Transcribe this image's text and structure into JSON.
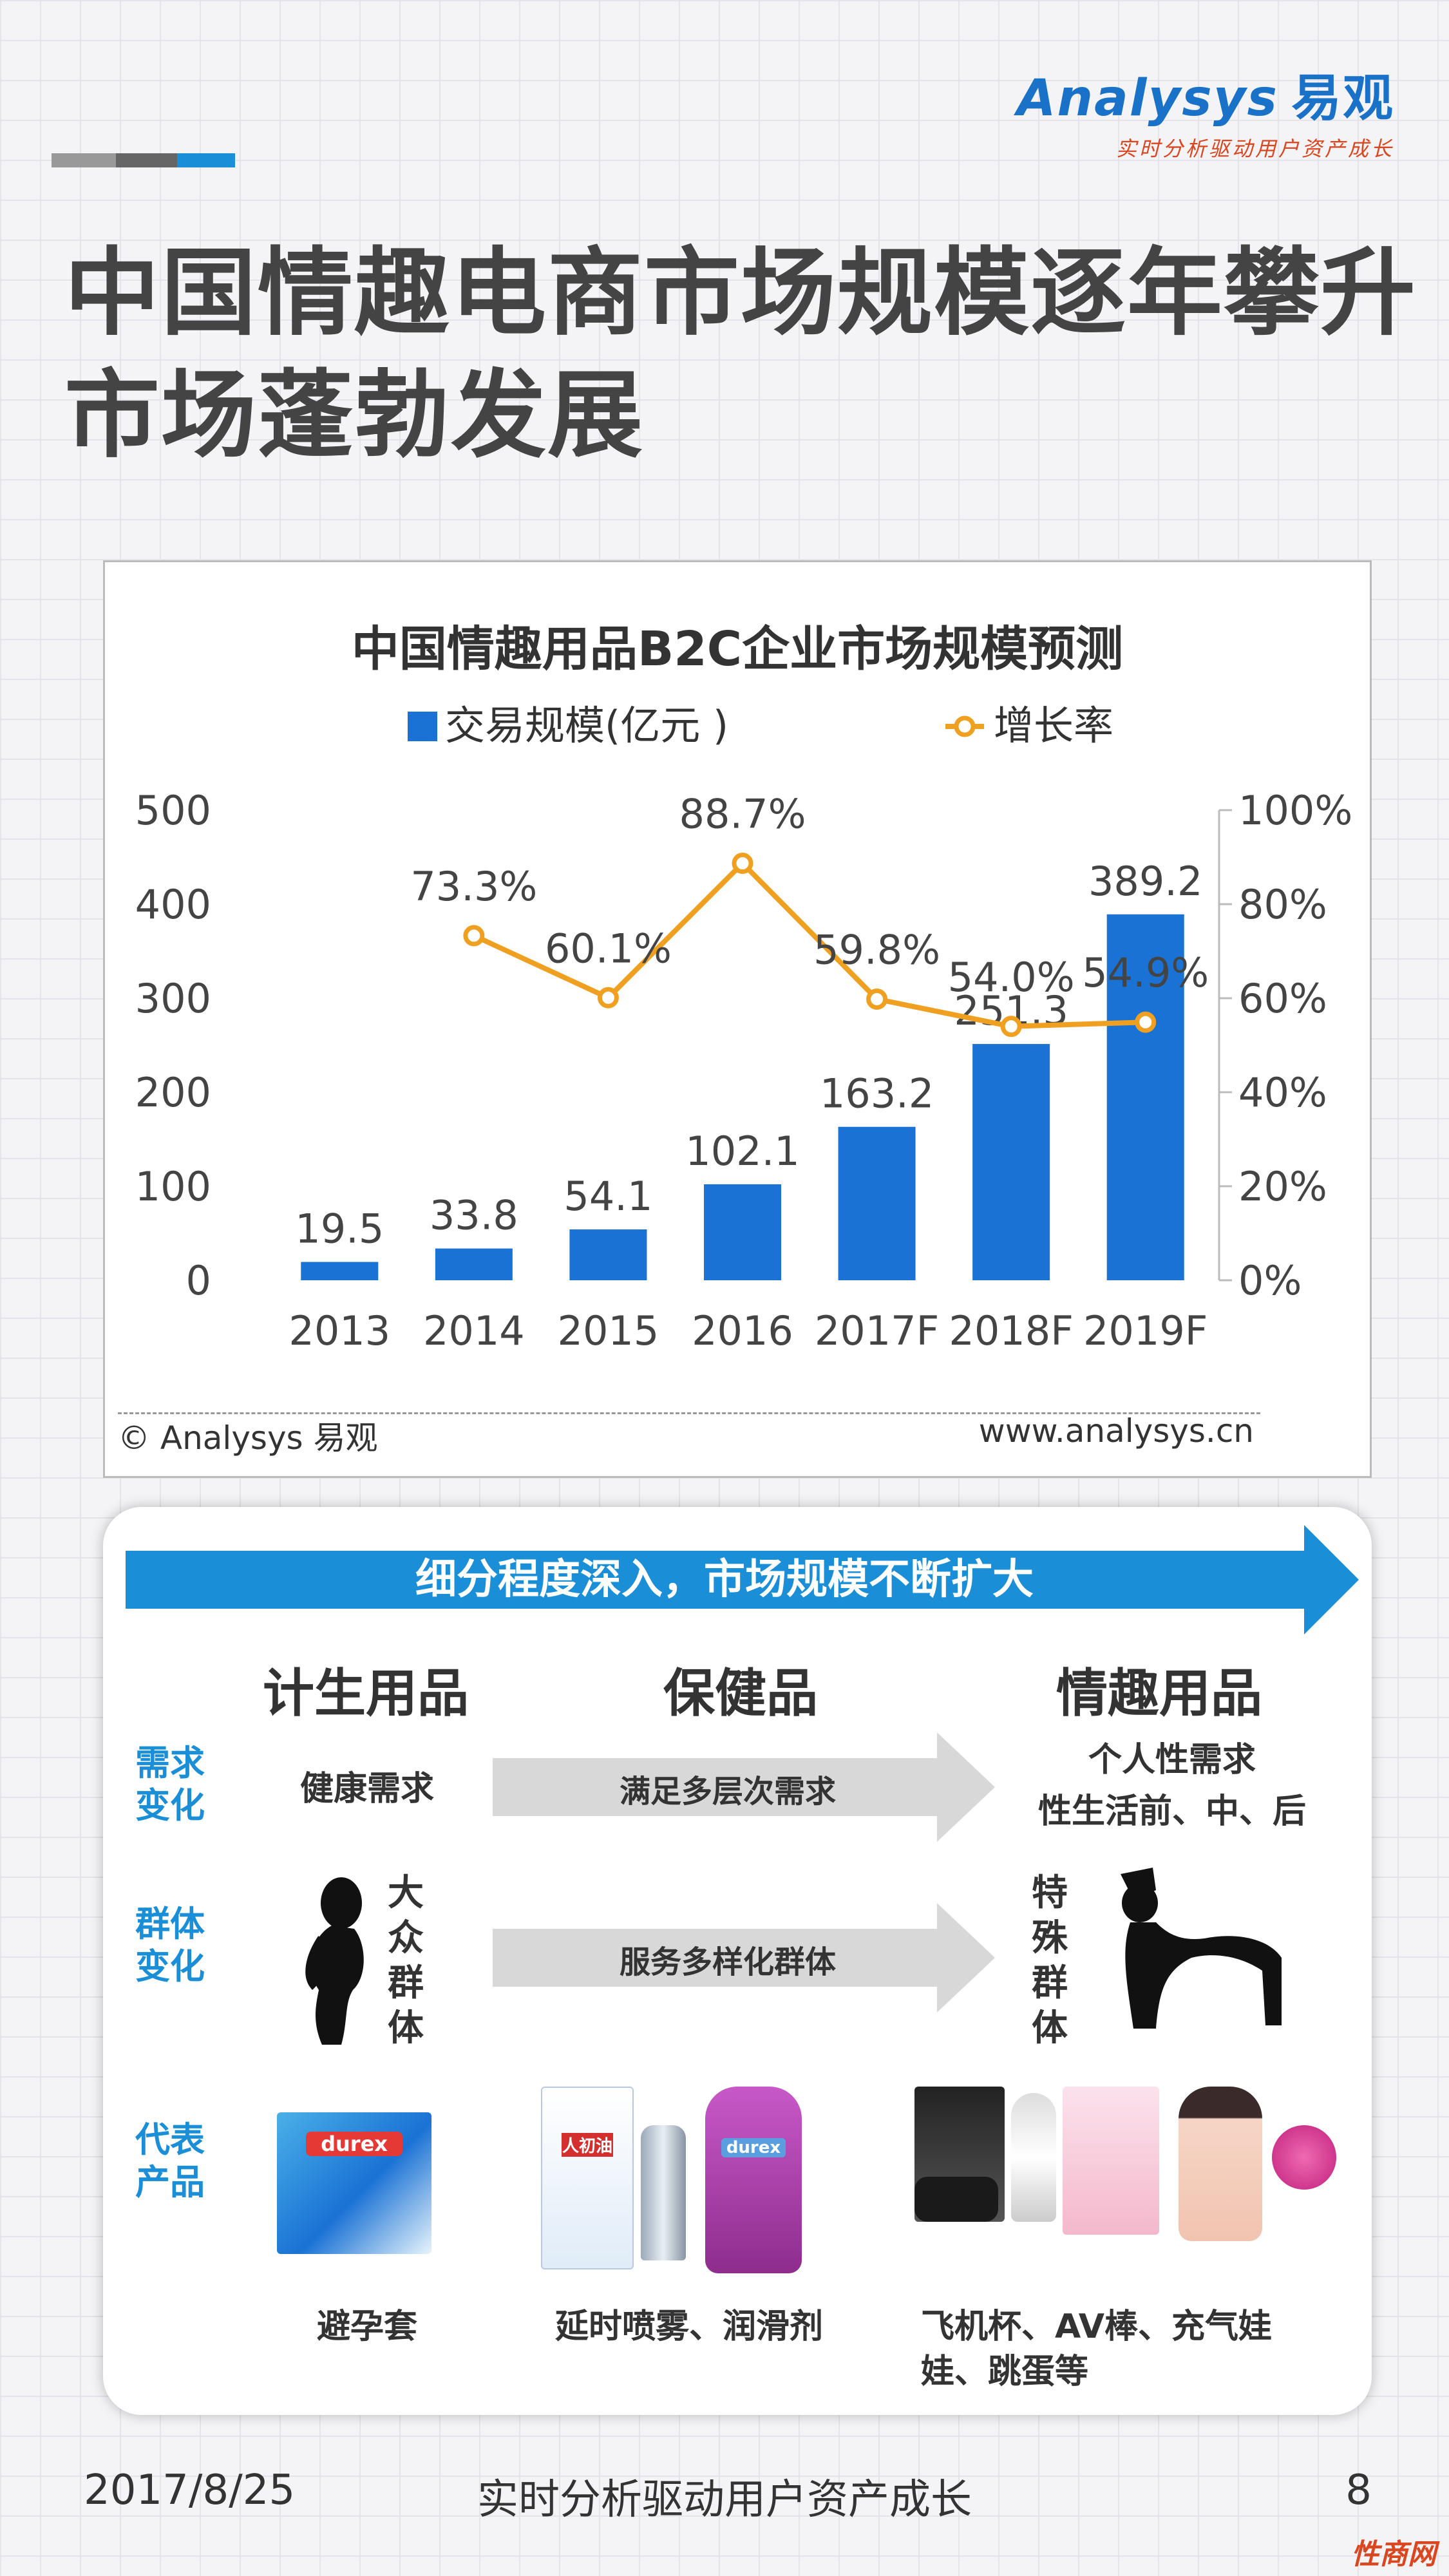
{
  "header": {
    "logo_brand": "Analysys",
    "logo_brand_cn": "易观",
    "logo_tagline": "实时分析驱动用户资产成长",
    "accent_colors": [
      "#999999",
      "#666666",
      "#1a8fd8"
    ]
  },
  "title": {
    "line1": "中国情趣电商市场规模逐年攀升",
    "line2": "市场蓬勃发展"
  },
  "chart": {
    "copyright": "© Analysys 易观",
    "website": "www.analysys.cn"
  },
  "chart_data": {
    "type": "bar",
    "title": "中国情趣用品B2C企业市场规模预测",
    "categories": [
      "2013",
      "2014",
      "2015",
      "2016",
      "2017F",
      "2018F",
      "2019F"
    ],
    "series": [
      {
        "name": "交易规模(亿元 )",
        "type": "bar",
        "axis": "left",
        "color": "#1a72d4",
        "values": [
          19.5,
          33.8,
          54.1,
          102.1,
          163.2,
          251.3,
          389.2
        ],
        "labels": [
          "19.5",
          "33.8",
          "54.1",
          "102.1",
          "163.2",
          "251.3",
          "389.2"
        ]
      },
      {
        "name": "增长率",
        "type": "line",
        "axis": "right",
        "color": "#f0a020",
        "values": [
          null,
          73.3,
          60.1,
          88.7,
          59.8,
          54.0,
          54.9
        ],
        "labels": [
          "",
          "73.3%",
          "60.1%",
          "88.7%",
          "59.8%",
          "54.0%",
          "54.9%"
        ]
      }
    ],
    "ylim": [
      0,
      500
    ],
    "yticks": [
      "0",
      "100",
      "200",
      "300",
      "400",
      "500"
    ],
    "y2lim": [
      0,
      100
    ],
    "y2ticks": [
      "0%",
      "20%",
      "40%",
      "60%",
      "80%",
      "100%"
    ],
    "legend": "top",
    "grid": false
  },
  "panel": {
    "banner": "细分程度深入，市场规模不断扩大",
    "columns": [
      "计生用品",
      "保健品",
      "情趣用品"
    ],
    "rows": {
      "demand_label": "需求\n变化",
      "group_label": "群体\n变化",
      "product_label": "代表\n产品"
    },
    "demand": {
      "left": "健康需求",
      "arrow": "满足多层次需求",
      "right_line1": "个人性需求",
      "right_line2": "性生活前、中、后"
    },
    "group": {
      "left": "大众群体",
      "arrow": "服务多样化群体",
      "right": "特殊群体"
    },
    "products": {
      "col1": "避孕套",
      "col2": "延时喷雾、润滑剂",
      "col3_line1": "飞机杯、AV棒、充气娃",
      "col3_line2": "娃、跳蛋等"
    },
    "product_box_texts": {
      "condom_brand": "durex",
      "spray_label": "人初油",
      "lube_brand": "durex"
    }
  },
  "footer": {
    "date": "2017/8/25",
    "slogan": "实时分析驱动用户资产成长",
    "page": "8",
    "site_mark": "性商网"
  }
}
